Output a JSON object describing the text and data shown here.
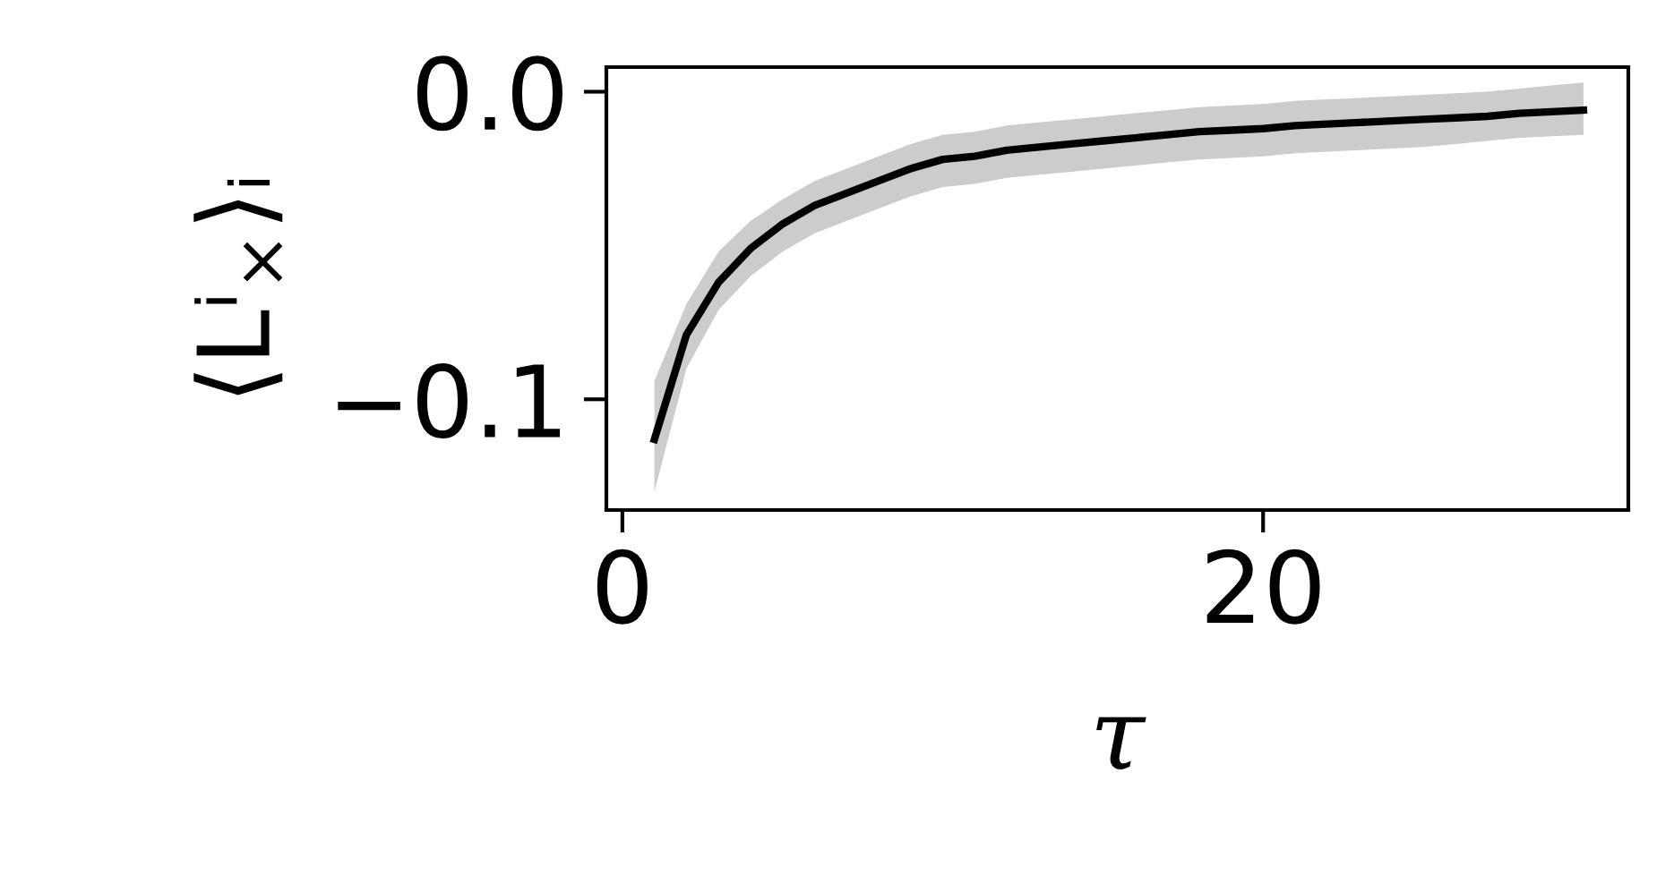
{
  "chart_data": {
    "type": "line",
    "xlabel": "τ",
    "ylabel": "⟨Lⁱ$_{×}$⟩ᵢ",
    "xlim": [
      -0.5,
      31.4
    ],
    "ylim": [
      -0.136,
      0.008
    ],
    "xticks": [
      0,
      20
    ],
    "yticks": [
      {
        "value": -0.1,
        "label": "−0.1"
      },
      {
        "value": 0.0,
        "label": "0.0"
      }
    ],
    "grid": false,
    "legend": false,
    "marker": "none",
    "line_style": "solid",
    "x": [
      1,
      2,
      3,
      4,
      5,
      6,
      7,
      8,
      9,
      10,
      11,
      12,
      13,
      14,
      15,
      16,
      17,
      18,
      19,
      20,
      21,
      22,
      23,
      24,
      25,
      26,
      27,
      28,
      29,
      30
    ],
    "series": [
      {
        "color": "#000000",
        "values": [
          -0.113,
          -0.079,
          -0.062,
          -0.051,
          -0.043,
          -0.037,
          -0.033,
          -0.029,
          -0.025,
          -0.022,
          -0.021,
          -0.019,
          -0.018,
          -0.017,
          -0.016,
          -0.015,
          -0.014,
          -0.013,
          -0.0125,
          -0.012,
          -0.011,
          -0.0105,
          -0.01,
          -0.0095,
          -0.009,
          -0.0085,
          -0.008,
          -0.007,
          -0.0065,
          -0.006
        ],
        "upper": [
          -0.094,
          -0.069,
          -0.052,
          -0.042,
          -0.035,
          -0.029,
          -0.025,
          -0.021,
          -0.017,
          -0.014,
          -0.013,
          -0.011,
          -0.01,
          -0.009,
          -0.008,
          -0.007,
          -0.006,
          -0.005,
          -0.0045,
          -0.004,
          -0.003,
          -0.0025,
          -0.002,
          -0.0015,
          -0.001,
          -0.0005,
          0.0,
          0.001,
          0.002,
          0.003
        ],
        "lower": [
          -0.13,
          -0.09,
          -0.071,
          -0.06,
          -0.052,
          -0.046,
          -0.042,
          -0.038,
          -0.034,
          -0.031,
          -0.03,
          -0.028,
          -0.027,
          -0.026,
          -0.025,
          -0.024,
          -0.023,
          -0.022,
          -0.0215,
          -0.021,
          -0.02,
          -0.0195,
          -0.019,
          -0.0185,
          -0.018,
          -0.017,
          -0.016,
          -0.015,
          -0.0145,
          -0.014
        ]
      }
    ]
  }
}
